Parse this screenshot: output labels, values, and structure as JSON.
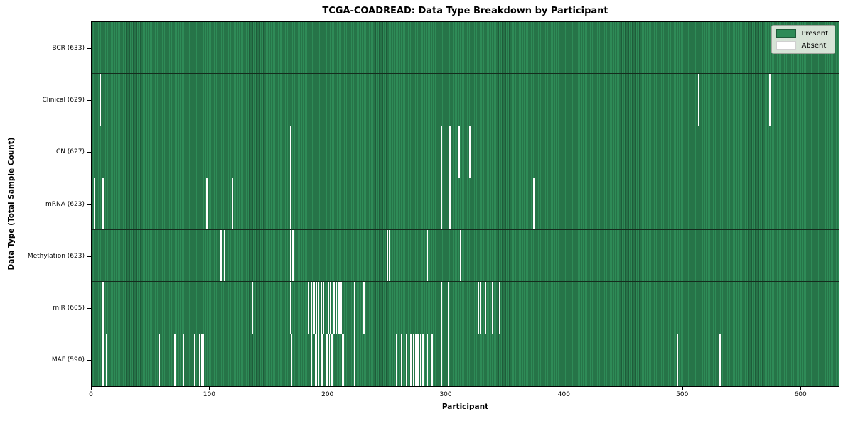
{
  "chart_data": {
    "type": "heatmap",
    "title": "TCGA-COADREAD: Data Type Breakdown by Participant",
    "xlabel": "Participant",
    "ylabel": "Data Type (Total Sample Count)",
    "xlim": [
      0,
      633
    ],
    "x_ticks": [
      0,
      100,
      200,
      300,
      400,
      500,
      600
    ],
    "n_participants": 633,
    "grid": false,
    "legend_position": "upper right",
    "colors": {
      "present": "#2e8b57",
      "present_edge": "#1e5c3a",
      "absent": "#ffffff",
      "background": "#ffffff"
    },
    "legend": [
      {
        "label": "Present",
        "color": "#2e8b57"
      },
      {
        "label": "Absent",
        "color": "#ffffff"
      }
    ],
    "rows": [
      {
        "label": "BCR (633)",
        "data_type": "BCR",
        "present_count": 633,
        "absent_count": 0,
        "absent_participants": []
      },
      {
        "label": "Clinical (629)",
        "data_type": "Clinical",
        "present_count": 629,
        "absent_count": 4,
        "absent_participants": [
          4,
          7,
          514,
          574
        ]
      },
      {
        "label": "CN (627)",
        "data_type": "CN",
        "present_count": 627,
        "absent_count": 6,
        "absent_participants": [
          168,
          248,
          296,
          303,
          311,
          320
        ]
      },
      {
        "label": "mRNA (623)",
        "data_type": "mRNA",
        "present_count": 623,
        "absent_count": 10,
        "absent_participants": [
          2,
          9,
          97,
          119,
          168,
          248,
          296,
          303,
          310,
          374
        ]
      },
      {
        "label": "Methylation (623)",
        "data_type": "Methylation",
        "present_count": 623,
        "absent_count": 10,
        "absent_participants": [
          109,
          112,
          168,
          170,
          248,
          250,
          252,
          284,
          310,
          312
        ]
      },
      {
        "label": "miR (605)",
        "data_type": "miR",
        "present_count": 605,
        "absent_count": 28,
        "absent_participants": [
          9,
          136,
          168,
          183,
          186,
          188,
          190,
          192,
          194,
          196,
          198,
          200,
          202,
          204,
          205,
          207,
          209,
          211,
          222,
          230,
          248,
          296,
          302,
          327,
          329,
          333,
          339,
          345
        ]
      },
      {
        "label": "MAF (590)",
        "data_type": "MAF",
        "present_count": 590,
        "absent_count": 43,
        "absent_participants": [
          9,
          12,
          57,
          60,
          70,
          77,
          87,
          91,
          93,
          94,
          98,
          169,
          186,
          189,
          190,
          192,
          194,
          195,
          199,
          201,
          203,
          204,
          210,
          212,
          213,
          222,
          248,
          258,
          262,
          266,
          270,
          272,
          274,
          276,
          278,
          280,
          284,
          288,
          296,
          302,
          496,
          532,
          537
        ]
      }
    ]
  }
}
